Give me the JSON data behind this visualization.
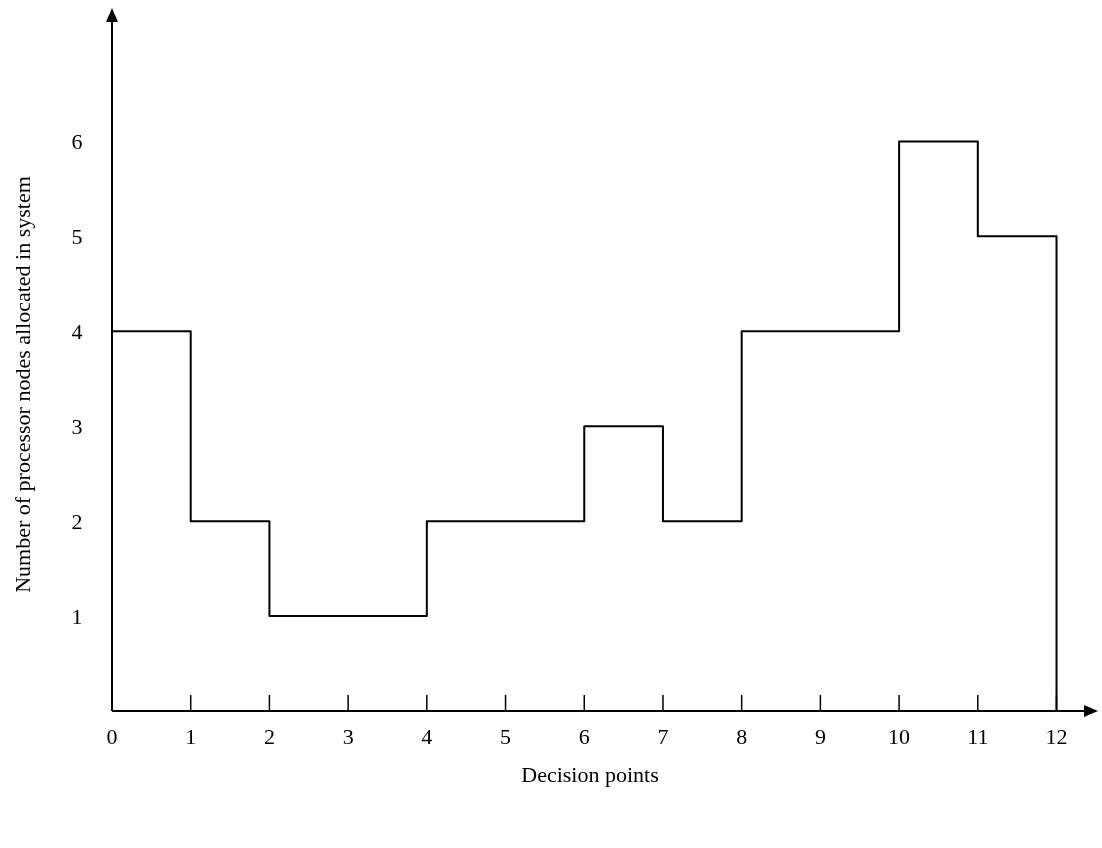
{
  "chart_data": {
    "type": "step",
    "xlabel": "Decision points",
    "ylabel": "Number of processor nodes allocated in system",
    "x": [
      0,
      1,
      2,
      4,
      6,
      7,
      8,
      10,
      11,
      12
    ],
    "values": [
      4,
      2,
      1,
      2,
      3,
      2,
      4,
      6,
      5,
      0
    ],
    "color": "#000000",
    "xlim": [
      0,
      12.4
    ],
    "xticks": [
      0,
      1,
      2,
      3,
      4,
      5,
      6,
      7,
      8,
      9,
      10,
      11,
      12
    ],
    "ylim": [
      0,
      7.3
    ],
    "yticks": [
      1,
      2,
      3,
      4,
      5,
      6
    ]
  }
}
